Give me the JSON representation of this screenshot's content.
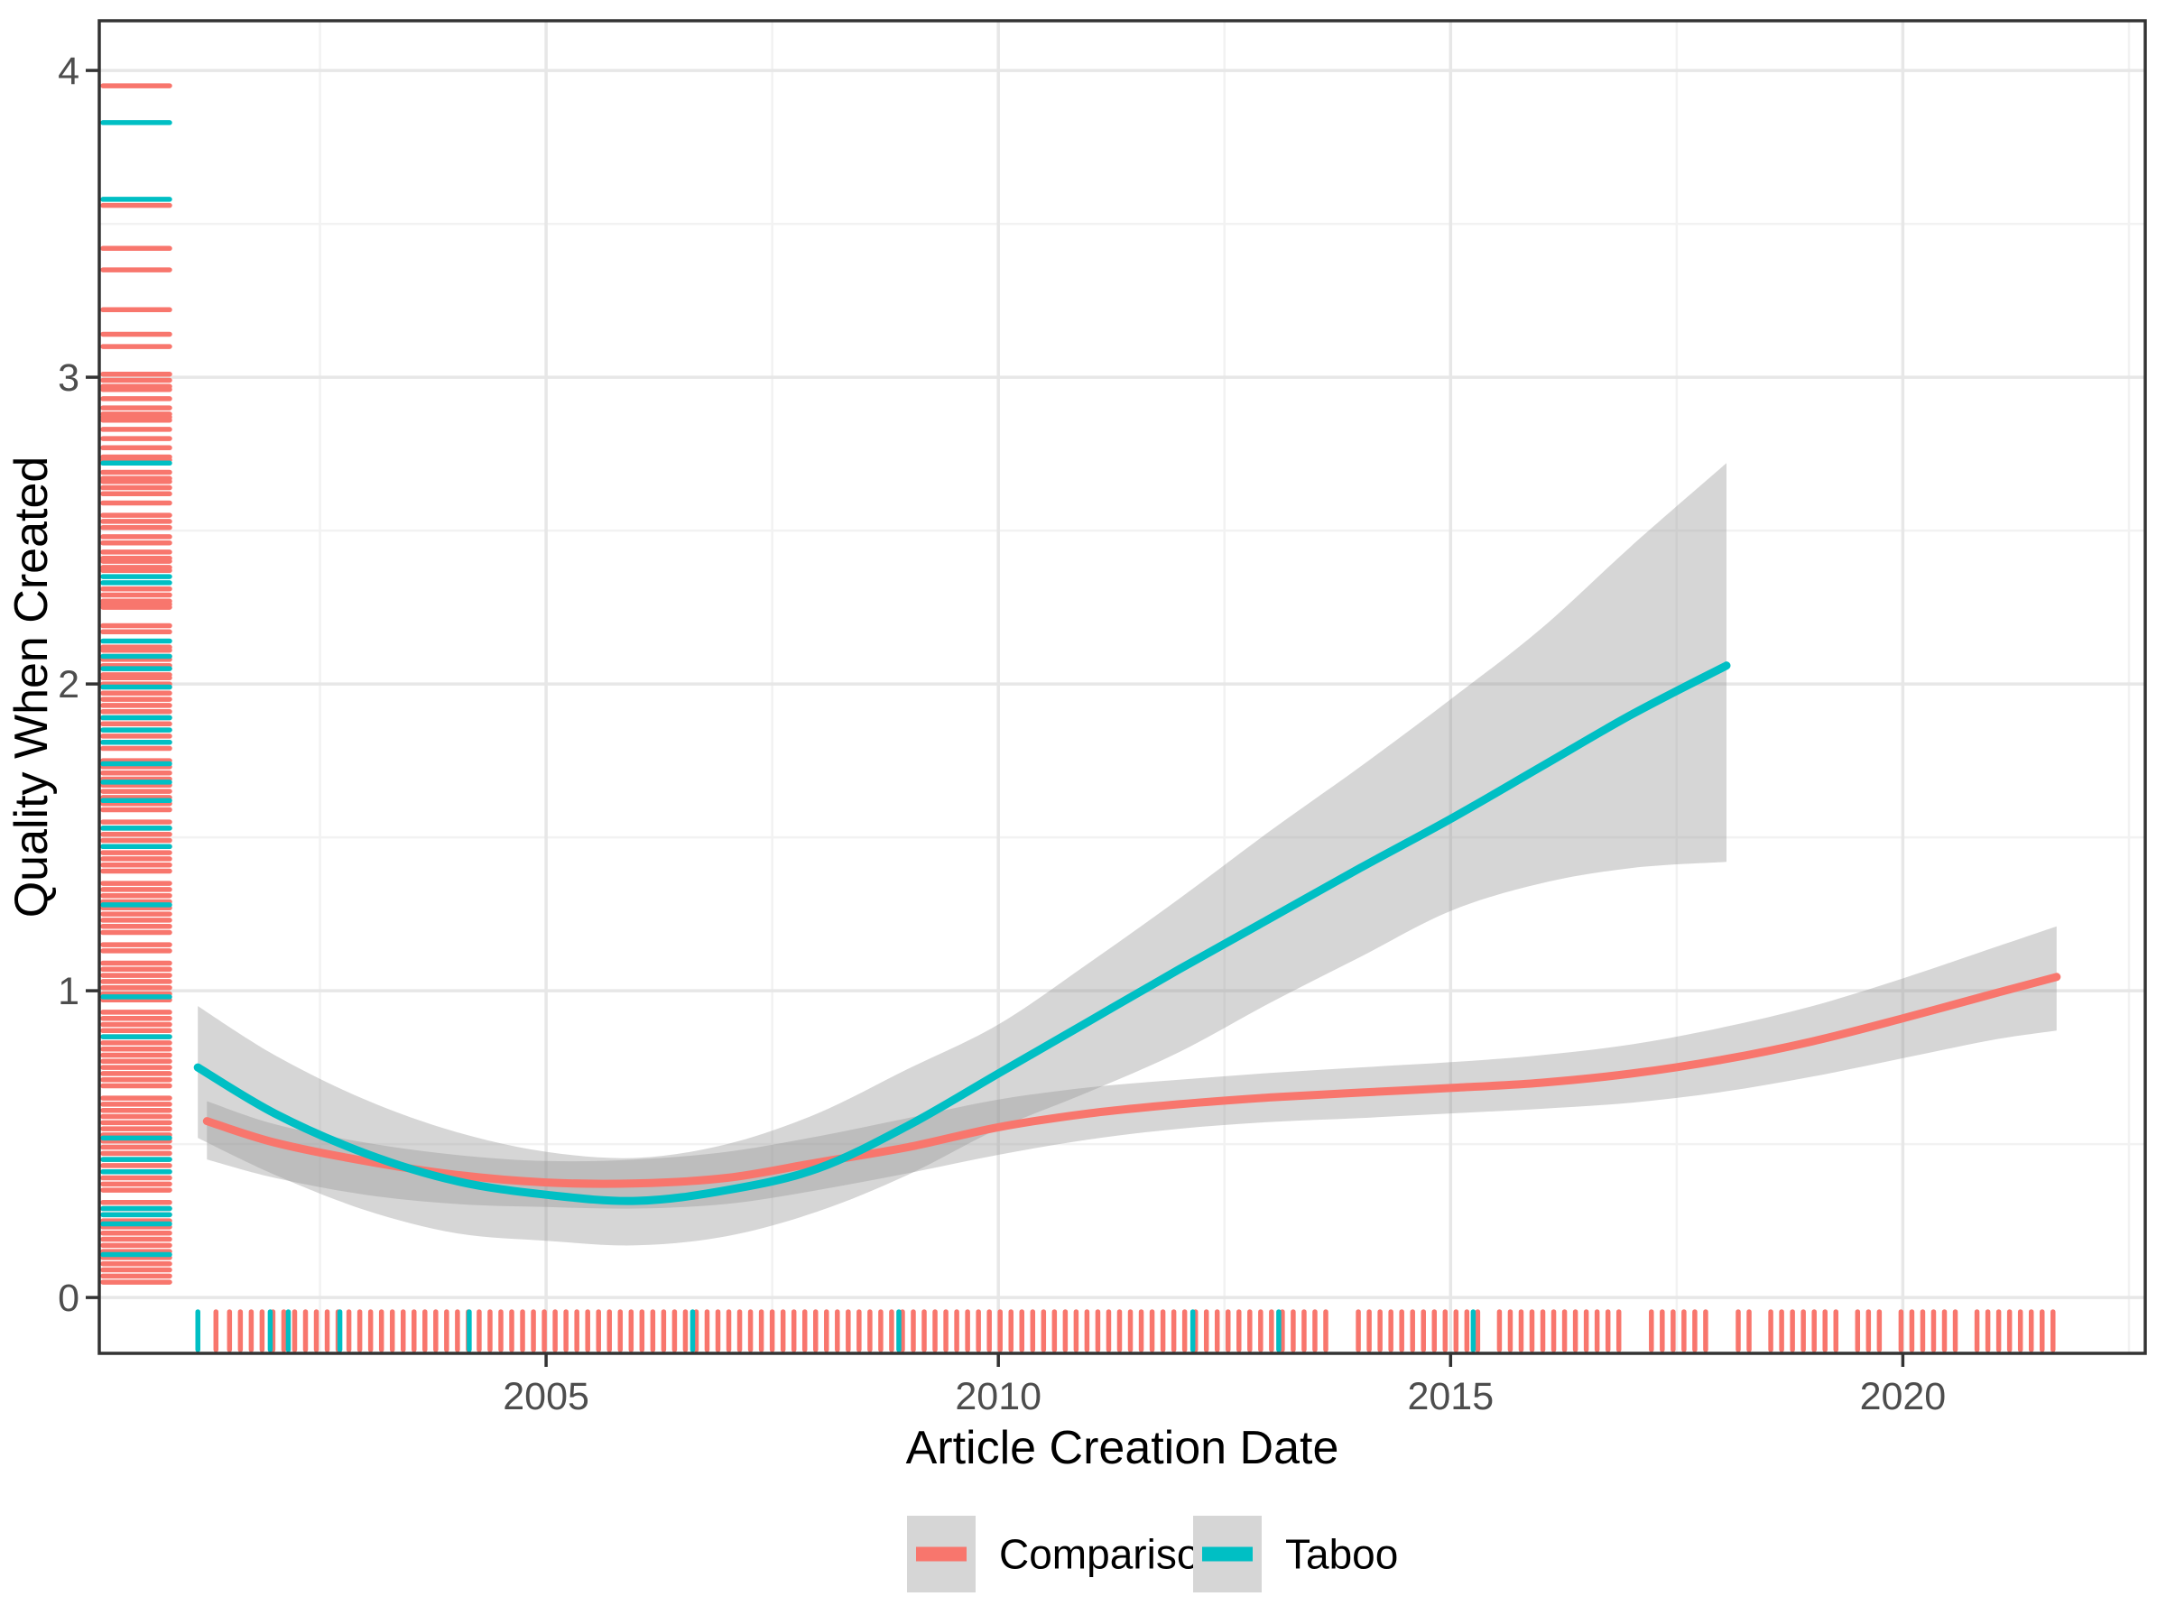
{
  "chart_data": {
    "type": "line",
    "title": "",
    "xlabel": "Article Creation Date",
    "ylabel": "Quality When Created",
    "x_domain": [
      2000.06,
      2022.68
    ],
    "y_domain": [
      -0.182,
      4.162
    ],
    "grid": true,
    "legend_position": "bottom",
    "x_ticks": {
      "major": [
        2005,
        2010,
        2015,
        2020
      ],
      "minor": [
        2002.5,
        2007.5,
        2012.5,
        2017.5,
        2022.5
      ],
      "labels": [
        "2005",
        "2010",
        "2015",
        "2020"
      ]
    },
    "y_ticks": {
      "major": [
        0,
        1,
        2,
        3,
        4
      ],
      "minor": [
        0.5,
        1.5,
        2.5,
        3.5
      ],
      "labels": [
        "0",
        "1",
        "2",
        "3",
        "4"
      ]
    },
    "colors": {
      "comparison": "#F8766D",
      "taboo": "#00BFC4",
      "ribbon": "rgba(153,153,153,0.4)",
      "grid_major": "#E7E7E7",
      "grid_minor": "#F2F2F2",
      "panel_border": "#333333",
      "tick_text": "#4D4D4D",
      "title_text": "#000000",
      "legend_key_bg": "#D6D6D6"
    },
    "series": [
      {
        "name": "Comparison",
        "color_key": "comparison",
        "x": [
          2001.25,
          2002,
          2003,
          2004,
          2005,
          2006,
          2007,
          2008,
          2009,
          2010,
          2011,
          2012,
          2013,
          2014,
          2015,
          2016,
          2017,
          2018,
          2019,
          2020,
          2021,
          2021.7
        ],
        "y": [
          0.575,
          0.505,
          0.445,
          0.4,
          0.375,
          0.372,
          0.39,
          0.44,
          0.49,
          0.555,
          0.6,
          0.63,
          0.652,
          0.668,
          0.683,
          0.7,
          0.73,
          0.775,
          0.835,
          0.91,
          0.99,
          1.045
        ],
        "ci_lower": [
          0.45,
          0.39,
          0.335,
          0.305,
          0.295,
          0.29,
          0.305,
          0.35,
          0.405,
          0.465,
          0.515,
          0.55,
          0.572,
          0.585,
          0.6,
          0.615,
          0.635,
          0.67,
          0.72,
          0.78,
          0.84,
          0.87
        ],
        "ci_upper": [
          0.64,
          0.565,
          0.505,
          0.465,
          0.445,
          0.45,
          0.475,
          0.525,
          0.585,
          0.645,
          0.685,
          0.71,
          0.732,
          0.75,
          0.767,
          0.79,
          0.825,
          0.88,
          0.95,
          1.04,
          1.14,
          1.21
        ]
      },
      {
        "name": "Taboo",
        "color_key": "taboo",
        "x": [
          2001.15,
          2002,
          2003,
          2004,
          2005,
          2006,
          2007,
          2008,
          2009,
          2010,
          2011,
          2012,
          2013,
          2014,
          2015,
          2016,
          2017,
          2018.05
        ],
        "y": [
          0.75,
          0.6,
          0.47,
          0.38,
          0.335,
          0.315,
          0.35,
          0.42,
          0.56,
          0.73,
          0.9,
          1.07,
          1.235,
          1.4,
          1.56,
          1.73,
          1.9,
          2.06
        ],
        "ci_lower": [
          0.52,
          0.4,
          0.285,
          0.21,
          0.185,
          0.17,
          0.2,
          0.28,
          0.4,
          0.55,
          0.67,
          0.8,
          0.96,
          1.11,
          1.26,
          1.35,
          1.4,
          1.42
        ],
        "ci_upper": [
          0.95,
          0.79,
          0.645,
          0.54,
          0.475,
          0.455,
          0.5,
          0.6,
          0.745,
          0.89,
          1.09,
          1.3,
          1.52,
          1.73,
          1.95,
          2.18,
          2.45,
          2.72
        ]
      }
    ],
    "rug_bottom": {
      "comparison": [
        2001.35,
        2001.5,
        2001.62,
        2001.74,
        2001.86,
        2001.98,
        2002.1,
        2002.22,
        2002.34,
        2002.46,
        2002.58,
        2002.7,
        2002.82,
        2002.94,
        2003.06,
        2003.18,
        2003.3,
        2003.42,
        2003.54,
        2003.66,
        2003.78,
        2003.9,
        2004.02,
        2004.14,
        2004.26,
        2004.38,
        2004.5,
        2004.62,
        2004.74,
        2004.86,
        2004.98,
        2005.1,
        2005.22,
        2005.34,
        2005.46,
        2005.58,
        2005.7,
        2005.82,
        2005.94,
        2006.06,
        2006.18,
        2006.3,
        2006.42,
        2006.54,
        2006.66,
        2006.78,
        2006.9,
        2007.02,
        2007.14,
        2007.26,
        2007.38,
        2007.5,
        2007.62,
        2007.74,
        2007.86,
        2007.98,
        2008.1,
        2008.22,
        2008.34,
        2008.46,
        2008.58,
        2008.7,
        2008.82,
        2008.94,
        2009.06,
        2009.18,
        2009.3,
        2009.42,
        2009.54,
        2009.66,
        2009.78,
        2009.9,
        2010.02,
        2010.14,
        2010.26,
        2010.38,
        2010.5,
        2010.62,
        2010.74,
        2010.86,
        2010.98,
        2011.1,
        2011.22,
        2011.34,
        2011.46,
        2011.58,
        2011.7,
        2011.82,
        2011.94,
        2012.06,
        2012.18,
        2012.3,
        2012.42,
        2012.54,
        2012.66,
        2012.78,
        2012.9,
        2013.02,
        2013.14,
        2013.26,
        2013.38,
        2013.5,
        2013.62,
        2013.98,
        2014.1,
        2014.22,
        2014.34,
        2014.46,
        2014.58,
        2014.7,
        2014.82,
        2014.94,
        2015.06,
        2015.18,
        2015.3,
        2015.54,
        2015.66,
        2015.78,
        2015.9,
        2016.02,
        2016.14,
        2016.26,
        2016.38,
        2016.5,
        2016.62,
        2016.74,
        2016.86,
        2017.22,
        2017.34,
        2017.46,
        2017.58,
        2017.7,
        2017.82,
        2018.18,
        2018.3,
        2018.54,
        2018.66,
        2018.78,
        2018.9,
        2019.02,
        2019.14,
        2019.26,
        2019.5,
        2019.62,
        2019.74,
        2019.98,
        2020.1,
        2020.22,
        2020.34,
        2020.46,
        2020.58,
        2020.82,
        2020.94,
        2021.06,
        2021.18,
        2021.3,
        2021.42,
        2021.54,
        2021.66
      ],
      "taboo": [
        2001.15,
        2001.95,
        2002.15,
        2002.72,
        2004.15,
        2006.62,
        2008.9,
        2012.15,
        2013.1,
        2015.25
      ]
    },
    "rug_left": {
      "comparison": [
        0.05,
        0.07,
        0.09,
        0.11,
        0.13,
        0.15,
        0.17,
        0.19,
        0.21,
        0.23,
        0.25,
        0.27,
        0.29,
        0.31,
        0.35,
        0.37,
        0.39,
        0.41,
        0.43,
        0.45,
        0.47,
        0.49,
        0.51,
        0.53,
        0.55,
        0.57,
        0.59,
        0.61,
        0.63,
        0.65,
        0.69,
        0.71,
        0.73,
        0.75,
        0.77,
        0.79,
        0.81,
        0.83,
        0.85,
        0.87,
        0.89,
        0.91,
        0.93,
        0.97,
        0.99,
        1.01,
        1.03,
        1.05,
        1.07,
        1.09,
        1.13,
        1.15,
        1.19,
        1.21,
        1.23,
        1.25,
        1.27,
        1.29,
        1.31,
        1.33,
        1.35,
        1.39,
        1.41,
        1.43,
        1.45,
        1.47,
        1.49,
        1.51,
        1.53,
        1.55,
        1.59,
        1.61,
        1.63,
        1.65,
        1.67,
        1.69,
        1.71,
        1.73,
        1.75,
        1.79,
        1.81,
        1.83,
        1.85,
        1.87,
        1.89,
        1.91,
        1.93,
        1.95,
        1.97,
        1.99,
        2.0,
        2.02,
        2.03,
        2.05,
        2.06,
        2.08,
        2.09,
        2.11,
        2.12,
        2.17,
        2.19,
        2.25,
        2.26,
        2.27,
        2.29,
        2.31,
        2.37,
        2.38,
        2.4,
        2.41,
        2.43,
        2.46,
        2.48,
        2.51,
        2.53,
        2.55,
        2.59,
        2.62,
        2.64,
        2.66,
        2.67,
        2.69,
        2.73,
        2.74,
        2.77,
        2.8,
        2.83,
        2.86,
        2.87,
        2.88,
        2.9,
        2.93,
        2.96,
        2.97,
        2.99,
        3.01,
        3.1,
        3.14,
        3.22,
        3.35,
        3.42,
        3.56,
        3.95
      ],
      "taboo": [
        3.83,
        3.58,
        2.72,
        2.35,
        2.33,
        2.14,
        2.09,
        2.05,
        1.99,
        1.89,
        1.85,
        1.81,
        1.74,
        1.68,
        1.62,
        1.53,
        1.47,
        1.28,
        0.98,
        0.85,
        0.52,
        0.45,
        0.41,
        0.29,
        0.27,
        0.24,
        0.14
      ]
    },
    "legend": {
      "items": [
        {
          "label": "Comparison",
          "color_key": "comparison"
        },
        {
          "label": "Taboo",
          "color_key": "taboo"
        }
      ]
    }
  }
}
